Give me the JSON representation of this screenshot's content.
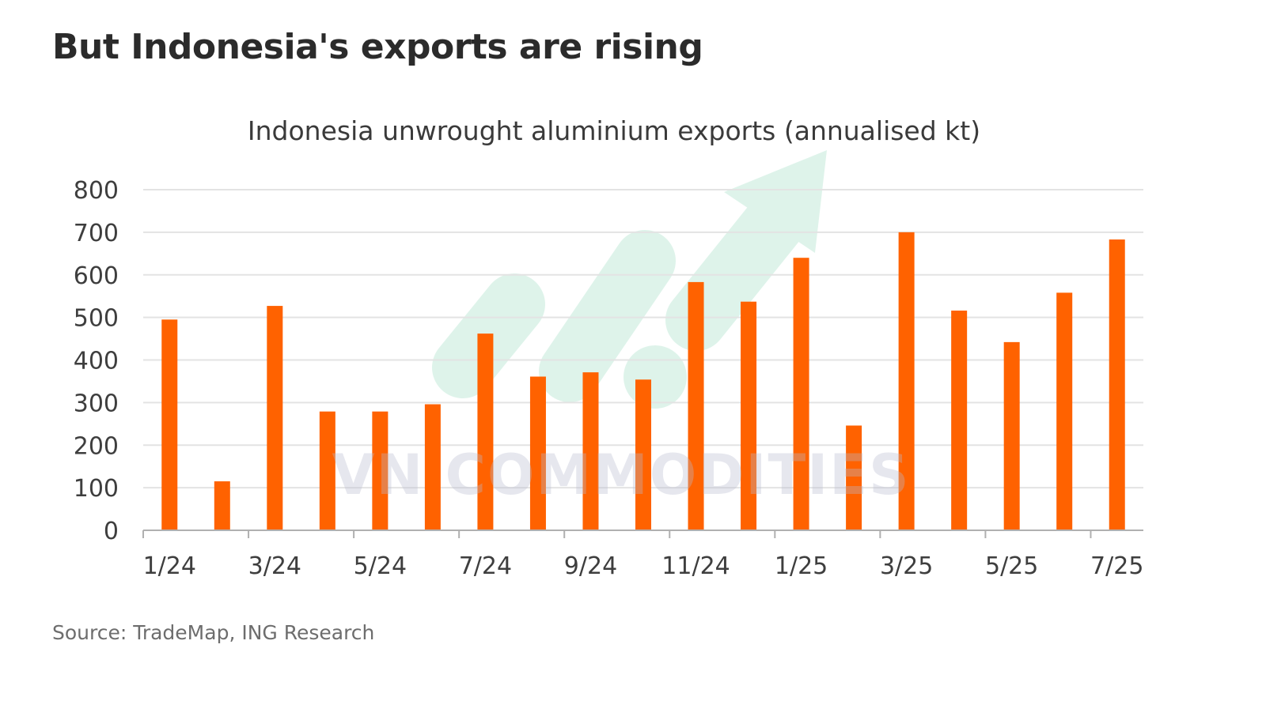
{
  "header": {
    "title": "But Indonesia's exports are rising"
  },
  "footer": {
    "source": "Source: TradeMap, ING Research"
  },
  "watermark": {
    "text": "VN COMMODITIES",
    "arrow_color": "#7fd3b0"
  },
  "colors": {
    "bar": "#ff6200",
    "grid": "#e3e3e3",
    "axis": "#b0b0b0"
  },
  "chart_data": {
    "type": "bar",
    "title": "Indonesia unwrought aluminium exports (annualised kt)",
    "xlabel": "",
    "ylabel": "",
    "categories": [
      "1/24",
      "2/24",
      "3/24",
      "4/24",
      "5/24",
      "6/24",
      "7/24",
      "8/24",
      "9/24",
      "10/24",
      "11/24",
      "12/24",
      "1/25",
      "2/25",
      "3/25",
      "4/25",
      "5/25",
      "6/25",
      "7/25"
    ],
    "x_tick_labels": [
      "1/24",
      "3/24",
      "5/24",
      "7/24",
      "9/24",
      "11/24",
      "1/25",
      "3/25",
      "5/25",
      "7/25"
    ],
    "values": [
      495,
      115,
      527,
      279,
      279,
      296,
      462,
      361,
      371,
      354,
      583,
      537,
      640,
      246,
      700,
      516,
      442,
      558,
      683
    ],
    "ylim": [
      0,
      800
    ],
    "yticks": [
      0,
      100,
      200,
      300,
      400,
      500,
      600,
      700,
      800
    ],
    "grid": true,
    "legend": "none"
  }
}
